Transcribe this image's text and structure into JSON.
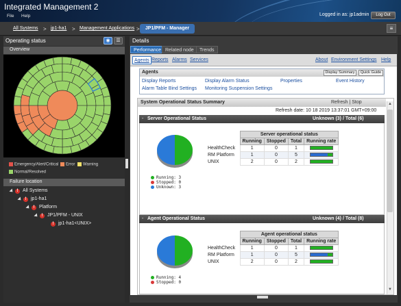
{
  "app": {
    "title": "Integrated Management 2"
  },
  "menu": {
    "file": "File",
    "help": "Help"
  },
  "user": {
    "logged_in": "Logged in as:  jp1admin",
    "logout": "Log Out"
  },
  "breadcrumb": {
    "items": [
      "All Systems",
      "jp1-ha1",
      "Management Applications"
    ],
    "separator": ">",
    "current": "JP1/PFM - Manager"
  },
  "left": {
    "title": "Operating status",
    "overview": "Overview",
    "legend": [
      {
        "label": "Emergency/Alert/Critical",
        "color": "#e2534b"
      },
      {
        "label": "Error",
        "color": "#ef8a5a"
      },
      {
        "label": "Warning",
        "color": "#f2e06a"
      },
      {
        "label": "Normal/Resolved",
        "color": "#9ad46a"
      }
    ],
    "failure_location": "Failure location",
    "tree": [
      "All Systems",
      "jp1-ha1",
      "Platform",
      "JP1/PFM - UNIX",
      "jp1-ha1<UNIX>"
    ]
  },
  "right": {
    "title": "Details",
    "tabs": [
      "Performance",
      "Related node",
      "Trends"
    ],
    "subtabs": [
      "Agents",
      "Reports",
      "Alarms",
      "Services"
    ],
    "top_links": [
      "About",
      "Environment Settings",
      "Help"
    ],
    "agents_panel": {
      "title": "Agents",
      "buttons": [
        "Display Summary",
        "Quick Guide"
      ],
      "links_row1": [
        "Display Reports",
        "Display Alarm Status",
        "Properties",
        "Event History"
      ],
      "links_row2": [
        "Alarm Table Bind Settings",
        "Monitoring Suspension Settings"
      ]
    },
    "system_summary": {
      "title": "System Operational Status Summary",
      "refresh": "Refresh",
      "sep": "|",
      "stop": "Stop",
      "refresh_date": "Refresh date: 10 18 2019 13:37:01 GMT+09:00"
    },
    "server": {
      "title": "Server Operational Status",
      "unknown": "Unknown (3)",
      "slash": "/",
      "total": "Total (6)",
      "table_group": "Server operational status",
      "columns": [
        "Running",
        "Stopped",
        "Total",
        "Running rate"
      ],
      "rows": [
        {
          "name": "HealthCheck",
          "running": "1",
          "stopped": "0",
          "total": "1",
          "rate": 1.0
        },
        {
          "name": "RM Platform",
          "running": "1",
          "stopped": "0",
          "total": "5",
          "rate": 0.2
        },
        {
          "name": "UNIX",
          "running": "2",
          "stopped": "0",
          "total": "2",
          "rate": 1.0
        }
      ],
      "pie_legend": [
        "Running: 3",
        "Stopped: 0",
        "Unknown: 3"
      ],
      "pie_colors": {
        "running": "#22b022",
        "stopped": "#d83a3a",
        "unknown": "#2a7ad8"
      }
    },
    "agent": {
      "title": "Agent Operational Status",
      "unknown": "Unknown (4)",
      "slash": "/",
      "total": "Total (8)",
      "table_group": "Agent operational status",
      "columns": [
        "Running",
        "Stopped",
        "Total",
        "Running rate"
      ],
      "rows": [
        {
          "name": "HealthCheck",
          "running": "1",
          "stopped": "0",
          "total": "1",
          "rate": 1.0
        },
        {
          "name": "RM Platform",
          "running": "1",
          "stopped": "0",
          "total": "5",
          "rate": 0.2
        },
        {
          "name": "UNIX",
          "running": "2",
          "stopped": "0",
          "total": "2",
          "rate": 1.0
        }
      ],
      "pie_legend": [
        "Running: 4",
        "Stopped: 0"
      ]
    }
  }
}
